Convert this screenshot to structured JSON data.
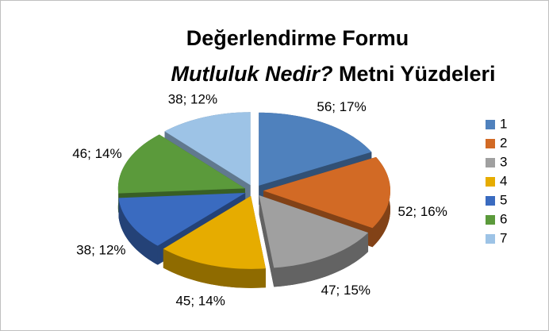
{
  "chart_data": {
    "type": "pie",
    "title": "Değerlendirme Formu",
    "subtitle": [
      "Mutluluk Nedir?",
      "Metni Yüzdeleri"
    ],
    "categories": [
      "1",
      "2",
      "3",
      "4",
      "5",
      "6",
      "7"
    ],
    "values": [
      56,
      52,
      47,
      45,
      38,
      46,
      38
    ],
    "value_labels": [
      "56; 17%",
      "52; 16%",
      "47; 15%",
      "45; 14%",
      "38; 12%",
      "46; 14%",
      "38; 12%"
    ],
    "colors": [
      "#4f81bd",
      "#d26a25",
      "#a0a0a0",
      "#e6ac00",
      "#3a6bc0",
      "#5b9a3b",
      "#9dc3e6"
    ],
    "legend": "right"
  }
}
